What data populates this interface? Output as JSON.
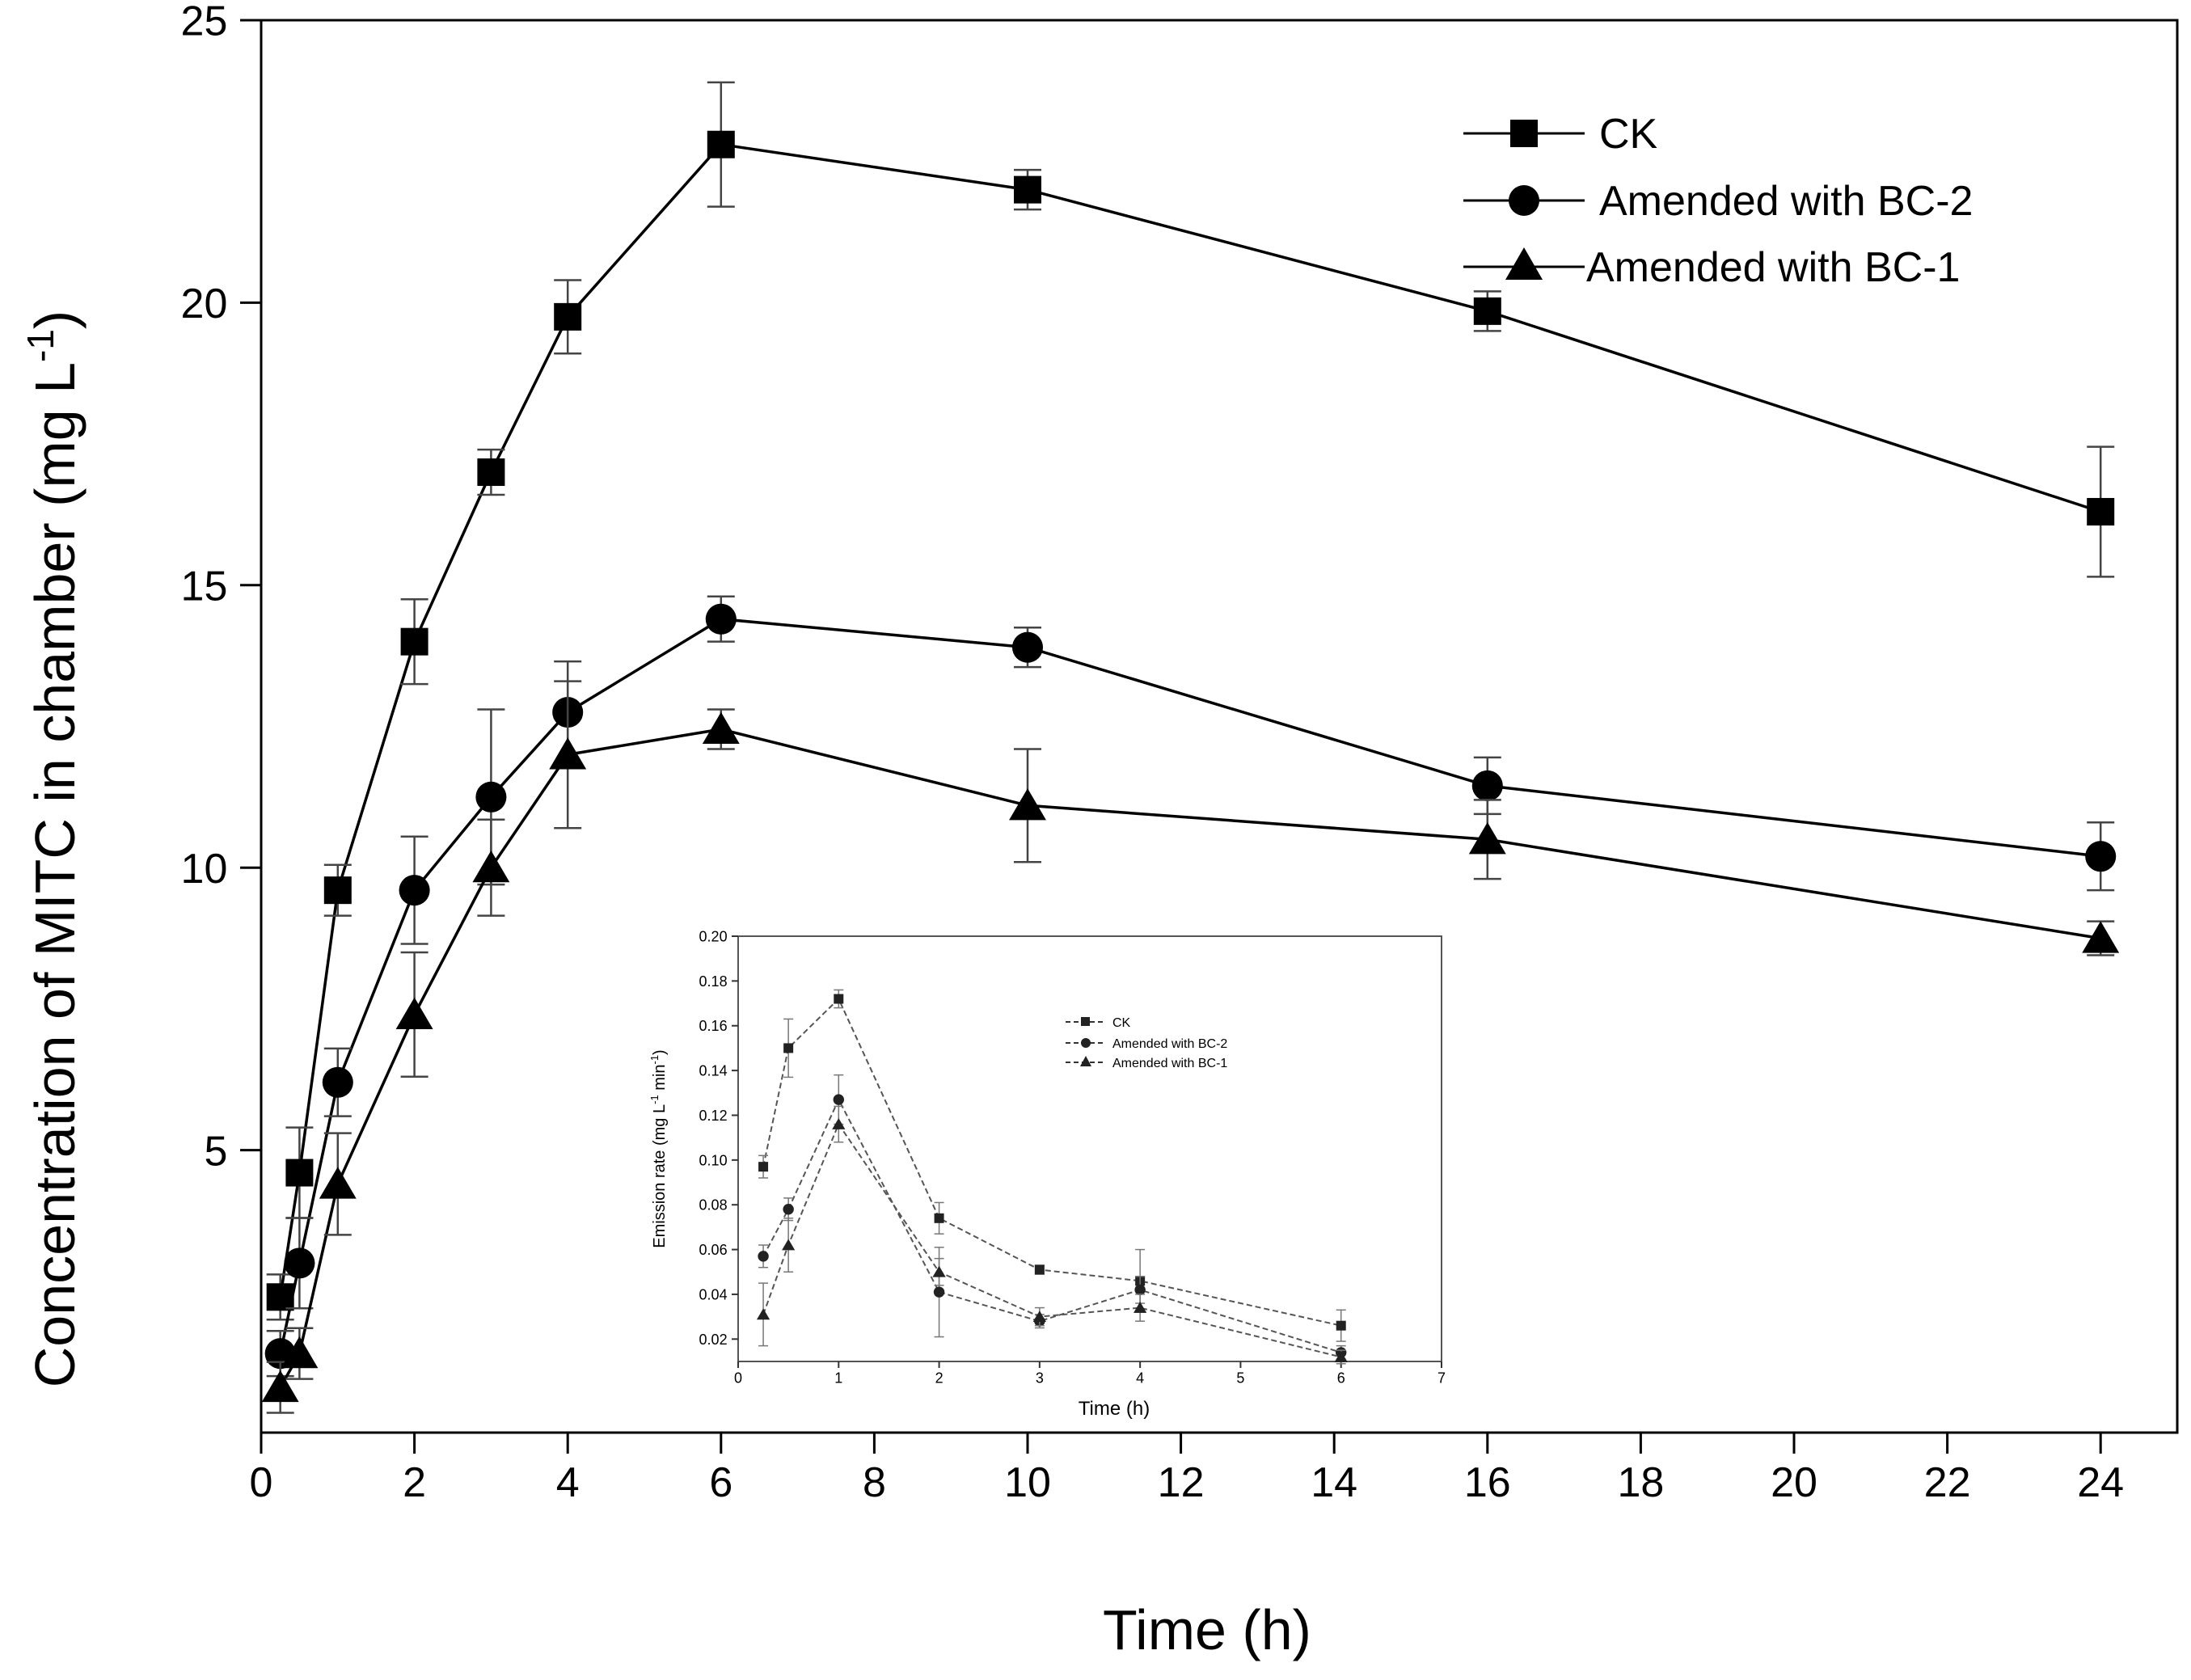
{
  "chart_data": [
    {
      "id": "main",
      "type": "line",
      "title": "",
      "xlabel": "Time (h)",
      "ylabel": "Concentration of MITC in chamber (mg L",
      "ylabel_sup": "-1",
      "ylabel_close": ")",
      "xlim": [
        0,
        25
      ],
      "ylim": [
        0,
        25
      ],
      "xticks": [
        0,
        2,
        4,
        6,
        8,
        10,
        12,
        14,
        16,
        18,
        20,
        22,
        24
      ],
      "yticks": [
        5,
        10,
        15,
        20,
        25
      ],
      "legend_position": "top-right",
      "series": [
        {
          "name": "CK",
          "marker": "square",
          "x": [
            0.25,
            0.5,
            1,
            2,
            3,
            4,
            6,
            10,
            16,
            24
          ],
          "y": [
            2.4,
            4.6,
            9.6,
            14.0,
            17.0,
            19.75,
            22.8,
            22.0,
            19.85,
            16.3
          ],
          "err": [
            0.4,
            0.8,
            0.45,
            0.75,
            0.4,
            0.65,
            1.1,
            0.35,
            0.35,
            1.15
          ]
        },
        {
          "name": "Amended with BC-2",
          "marker": "circle",
          "x": [
            0.25,
            0.5,
            1,
            2,
            3,
            4,
            6,
            10,
            16,
            24
          ],
          "y": [
            1.4,
            3.0,
            6.2,
            9.6,
            11.25,
            12.75,
            14.4,
            13.9,
            11.45,
            10.2
          ],
          "err": [
            0.4,
            0.8,
            0.6,
            0.95,
            1.55,
            0.9,
            0.4,
            0.35,
            0.5,
            0.6
          ]
        },
        {
          "name": "Amended with BC-1",
          "marker": "triangle",
          "x": [
            0.25,
            0.5,
            1,
            2,
            3,
            4,
            6,
            10,
            16,
            24
          ],
          "y": [
            0.8,
            1.4,
            4.4,
            7.4,
            10.0,
            12.0,
            12.45,
            11.1,
            10.5,
            8.75
          ],
          "err": [
            0.45,
            0.45,
            0.9,
            1.1,
            0.85,
            1.3,
            0.35,
            1.0,
            0.7,
            0.3
          ]
        }
      ]
    },
    {
      "id": "inset",
      "type": "line",
      "title": "",
      "xlabel": "Time (h)",
      "ylabel": "Emission rate (mg L",
      "ylabel_sup1": "-1",
      "ylabel_mid": " min",
      "ylabel_sup2": "-1",
      "ylabel_close": ")",
      "xlim": [
        0,
        7
      ],
      "ylim": [
        0.01,
        0.2
      ],
      "xticks": [
        0,
        1,
        2,
        3,
        4,
        5,
        6,
        7
      ],
      "yticks": [
        0.02,
        0.04,
        0.06,
        0.08,
        0.1,
        0.12,
        0.14,
        0.16,
        0.18,
        0.2
      ],
      "ytick_labels": [
        "0.02",
        "0.04",
        "0.06",
        "0.08",
        "0.10",
        "0.12",
        "0.14",
        "0.16",
        "0.18",
        "0.20"
      ],
      "legend_position": "top-right",
      "series": [
        {
          "name": "CK",
          "marker": "square",
          "x": [
            0.25,
            0.5,
            1,
            2,
            3,
            4,
            6
          ],
          "y": [
            0.097,
            0.15,
            0.172,
            0.074,
            0.051,
            0.046,
            0.026
          ],
          "err": [
            0.005,
            0.013,
            0.004,
            0.007,
            0.002,
            0.014,
            0.007
          ]
        },
        {
          "name": "Amended with BC-2",
          "marker": "circle",
          "x": [
            0.25,
            0.5,
            1,
            2,
            3,
            4,
            6
          ],
          "y": [
            0.057,
            0.078,
            0.127,
            0.041,
            0.028,
            0.042,
            0.014
          ],
          "err": [
            0.005,
            0.005,
            0.011,
            0.02,
            0.003,
            0.006,
            0.003
          ]
        },
        {
          "name": "Amended with BC-1",
          "marker": "triangle",
          "x": [
            0.25,
            0.5,
            1,
            2,
            3,
            4,
            6
          ],
          "y": [
            0.031,
            0.062,
            0.116,
            0.05,
            0.03,
            0.034,
            0.012
          ],
          "err": [
            0.014,
            0.012,
            0.008,
            0.006,
            0.004,
            0.006,
            0.003
          ]
        }
      ]
    }
  ]
}
